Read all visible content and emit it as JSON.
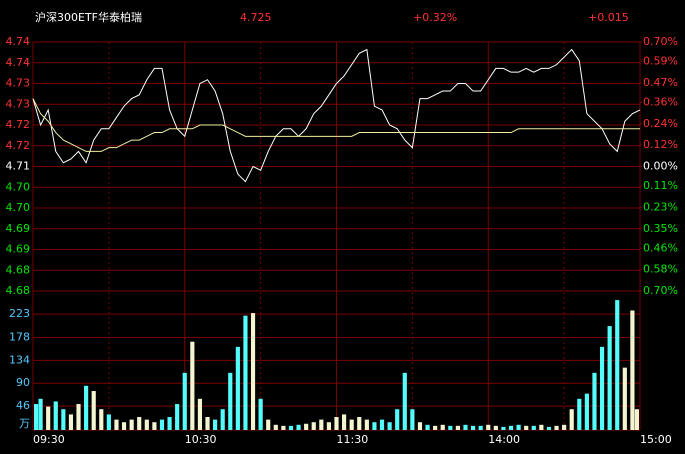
{
  "header": {
    "title": "沪深300ETF华泰柏瑞",
    "price": "4.725",
    "change_pct": "+0.32%",
    "change": "+0.015"
  },
  "chart_data": [
    {
      "type": "line",
      "x": [
        0,
        3,
        6,
        9,
        12,
        15,
        18,
        21,
        24,
        27,
        30,
        33,
        36,
        39,
        42,
        45,
        48,
        51,
        54,
        57,
        60,
        63,
        66,
        69,
        72,
        75,
        78,
        81,
        84,
        87,
        90,
        93,
        96,
        99,
        102,
        105,
        108,
        111,
        114,
        117,
        120,
        123,
        126,
        129,
        132,
        135,
        138,
        141,
        144,
        147,
        150,
        153,
        156,
        159,
        162,
        165,
        168,
        171,
        174,
        177,
        180,
        183,
        186,
        189,
        192,
        195,
        198,
        201,
        204,
        207,
        210,
        213,
        216,
        219,
        222,
        225,
        228,
        231,
        234,
        237,
        240
      ],
      "series": [
        {
          "name": "price",
          "color": "#ffffff",
          "values": [
            4.728,
            4.721,
            4.725,
            4.714,
            4.711,
            4.712,
            4.714,
            4.711,
            4.717,
            4.72,
            4.72,
            4.723,
            4.726,
            4.728,
            4.729,
            4.733,
            4.736,
            4.736,
            4.725,
            4.72,
            4.718,
            4.725,
            4.732,
            4.733,
            4.73,
            4.724,
            4.714,
            4.708,
            4.706,
            4.71,
            4.709,
            4.714,
            4.718,
            4.72,
            4.72,
            4.718,
            4.72,
            4.724,
            4.726,
            4.729,
            4.732,
            4.734,
            4.737,
            4.74,
            4.741,
            4.726,
            4.725,
            4.721,
            4.72,
            4.717,
            4.715,
            4.728,
            4.728,
            4.729,
            4.73,
            4.73,
            4.732,
            4.732,
            4.73,
            4.73,
            4.733,
            4.736,
            4.736,
            4.735,
            4.735,
            4.736,
            4.735,
            4.736,
            4.736,
            4.737,
            4.739,
            4.741,
            4.738,
            4.724,
            4.722,
            4.72,
            4.716,
            4.714,
            4.722,
            4.724,
            4.725
          ]
        },
        {
          "name": "average",
          "color": "#f0f0a0",
          "values": [
            4.728,
            4.724,
            4.722,
            4.719,
            4.717,
            4.716,
            4.715,
            4.714,
            4.714,
            4.714,
            4.715,
            4.715,
            4.716,
            4.717,
            4.717,
            4.718,
            4.719,
            4.719,
            4.72,
            4.72,
            4.72,
            4.72,
            4.721,
            4.721,
            4.721,
            4.721,
            4.72,
            4.719,
            4.718,
            4.718,
            4.718,
            4.718,
            4.718,
            4.718,
            4.718,
            4.718,
            4.718,
            4.718,
            4.718,
            4.718,
            4.718,
            4.718,
            4.718,
            4.719,
            4.719,
            4.719,
            4.719,
            4.719,
            4.719,
            4.719,
            4.719,
            4.719,
            4.719,
            4.719,
            4.719,
            4.719,
            4.719,
            4.719,
            4.719,
            4.719,
            4.719,
            4.719,
            4.719,
            4.719,
            4.72,
            4.72,
            4.72,
            4.72,
            4.72,
            4.72,
            4.72,
            4.72,
            4.72,
            4.72,
            4.72,
            4.72,
            4.72,
            4.72,
            4.72,
            4.72,
            4.72
          ]
        }
      ],
      "xlim": [
        0,
        240
      ],
      "xticks": [
        {
          "value": 0,
          "label": "09:30"
        },
        {
          "value": 60,
          "label": "10:30"
        },
        {
          "value": 120,
          "label": "11:30"
        },
        {
          "value": 180,
          "label": "14:00"
        },
        {
          "value": 240,
          "label": "15:00"
        }
      ],
      "x_minor_ticks": [
        30,
        90,
        150,
        210
      ],
      "ylim": [
        4.677,
        4.743
      ],
      "yticks": [
        {
          "value": 4.743,
          "label": "4.74"
        },
        {
          "value": 4.7375,
          "label": "4.74"
        },
        {
          "value": 4.732,
          "label": "4.73"
        },
        {
          "value": 4.7265,
          "label": "4.73"
        },
        {
          "value": 4.721,
          "label": "4.72"
        },
        {
          "value": 4.7155,
          "label": "4.72"
        },
        {
          "value": 4.71,
          "label": "4.71"
        },
        {
          "value": 4.7045,
          "label": "4.70"
        },
        {
          "value": 4.699,
          "label": "4.70"
        },
        {
          "value": 4.6935,
          "label": "4.69"
        },
        {
          "value": 4.688,
          "label": "4.69"
        },
        {
          "value": 4.6825,
          "label": "4.68"
        },
        {
          "value": 4.677,
          "label": "4.68"
        }
      ],
      "y2lim": [
        -0.7,
        0.7
      ],
      "y2ticks": [
        {
          "value": 0.7,
          "label": "0.70%"
        },
        {
          "value": 0.59,
          "label": "0.59%"
        },
        {
          "value": 0.47,
          "label": "0.47%"
        },
        {
          "value": 0.36,
          "label": "0.36%"
        },
        {
          "value": 0.24,
          "label": "0.24%"
        },
        {
          "value": 0.12,
          "label": "0.12%"
        },
        {
          "value": 0,
          "label": "0.00%"
        },
        {
          "value": -0.11,
          "label": "0.11%"
        },
        {
          "value": -0.23,
          "label": "0.23%"
        },
        {
          "value": -0.35,
          "label": "0.35%"
        },
        {
          "value": -0.46,
          "label": "0.46%"
        },
        {
          "value": -0.58,
          "label": "0.58%"
        },
        {
          "value": -0.7,
          "label": "0.70%"
        }
      ],
      "up_color": "#ff3232",
      "down_color": "#00e600",
      "flat_color": "#ffffff",
      "grid": true
    },
    {
      "type": "bar",
      "x": [
        0,
        3,
        6,
        9,
        12,
        15,
        18,
        21,
        24,
        27,
        30,
        33,
        36,
        39,
        42,
        45,
        48,
        51,
        54,
        57,
        60,
        63,
        66,
        69,
        72,
        75,
        78,
        81,
        84,
        87,
        90,
        93,
        96,
        99,
        102,
        105,
        108,
        111,
        114,
        117,
        120,
        123,
        126,
        129,
        132,
        135,
        138,
        141,
        144,
        147,
        150,
        153,
        156,
        159,
        162,
        165,
        168,
        171,
        174,
        177,
        180,
        183,
        186,
        189,
        192,
        195,
        198,
        201,
        204,
        207,
        210,
        213,
        216,
        219,
        222,
        225,
        228,
        231,
        234,
        237,
        240
      ],
      "values": [
        50,
        60,
        45,
        55,
        40,
        30,
        50,
        85,
        75,
        40,
        30,
        20,
        15,
        20,
        25,
        20,
        15,
        20,
        25,
        50,
        110,
        170,
        60,
        25,
        20,
        40,
        110,
        160,
        220,
        225,
        60,
        20,
        10,
        8,
        8,
        10,
        12,
        15,
        20,
        15,
        25,
        30,
        20,
        25,
        20,
        15,
        20,
        15,
        40,
        110,
        40,
        15,
        10,
        8,
        10,
        8,
        8,
        10,
        8,
        8,
        10,
        8,
        6,
        8,
        10,
        8,
        8,
        10,
        6,
        8,
        10,
        40,
        60,
        70,
        110,
        160,
        200,
        250,
        120,
        230,
        40
      ],
      "color": "#54fcfc",
      "ylim": [
        0,
        267.5
      ],
      "yticks": [
        46,
        90,
        134,
        178,
        223
      ],
      "unit": "万",
      "tick_color": "#54c8fc",
      "grid": true
    }
  ]
}
